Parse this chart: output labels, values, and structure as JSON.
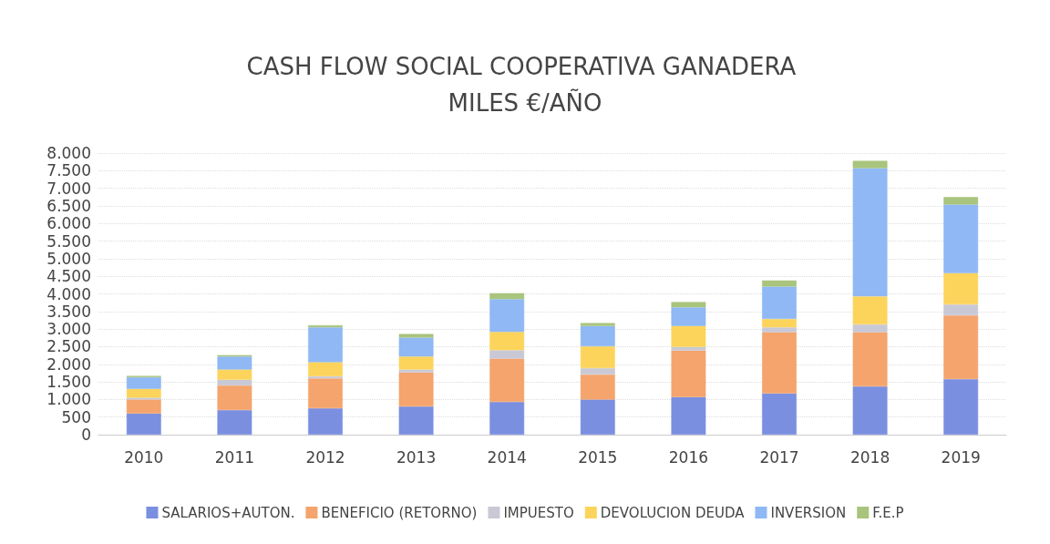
{
  "chart_data": {
    "type": "bar",
    "title": "CASH FLOW SOCIAL COOPERATIVA GANADERA MILES €/AÑO",
    "stacked": true,
    "categories": [
      "2010",
      "2011",
      "2012",
      "2013",
      "2014",
      "2015",
      "2016",
      "2017",
      "2018",
      "2019"
    ],
    "series": [
      {
        "name": "SALARIOS+AUTON.",
        "color": "#7b8fe0",
        "values": [
          600,
          700,
          750,
          800,
          930,
          1000,
          1070,
          1170,
          1370,
          1580
        ]
      },
      {
        "name": "BENEFICIO (RETORNO)",
        "color": "#f4a46c",
        "values": [
          400,
          700,
          850,
          970,
          1230,
          710,
          1320,
          1740,
          1540,
          1810
        ]
      },
      {
        "name": "IMPUESTO",
        "color": "#c9c9d6",
        "values": [
          50,
          160,
          60,
          80,
          240,
          180,
          100,
          140,
          220,
          310
        ]
      },
      {
        "name": "DEVOLUCION DEUDA",
        "color": "#fcd45c",
        "values": [
          250,
          290,
          400,
          370,
          520,
          620,
          600,
          240,
          800,
          890
        ]
      },
      {
        "name": "INVERSION",
        "color": "#8fb8f4",
        "values": [
          330,
          370,
          990,
          540,
          930,
          580,
          530,
          920,
          3640,
          1950
        ]
      },
      {
        "name": "F.E.P",
        "color": "#a9c47c",
        "values": [
          40,
          40,
          60,
          100,
          170,
          80,
          150,
          170,
          210,
          210
        ]
      }
    ],
    "ylim": [
      0,
      8000
    ],
    "yticks": [
      {
        "value": 0,
        "label": "0"
      },
      {
        "value": 500,
        "label": "500"
      },
      {
        "value": 1000,
        "label": "1.000"
      },
      {
        "value": 1500,
        "label": "1.500"
      },
      {
        "value": 2000,
        "label": "2.000"
      },
      {
        "value": 2500,
        "label": "2.500"
      },
      {
        "value": 3000,
        "label": "3.000"
      },
      {
        "value": 3500,
        "label": "3.500"
      },
      {
        "value": 4000,
        "label": "4.000"
      },
      {
        "value": 4500,
        "label": "4.500"
      },
      {
        "value": 5000,
        "label": "5.000"
      },
      {
        "value": 5500,
        "label": "5.500"
      },
      {
        "value": 6000,
        "label": "6.000"
      },
      {
        "value": 6500,
        "label": "6.500"
      },
      {
        "value": 7000,
        "label": "7.000"
      },
      {
        "value": 7500,
        "label": "7.500"
      },
      {
        "value": 8000,
        "label": "8.000"
      }
    ],
    "grid": "y",
    "legend": "bottom"
  }
}
